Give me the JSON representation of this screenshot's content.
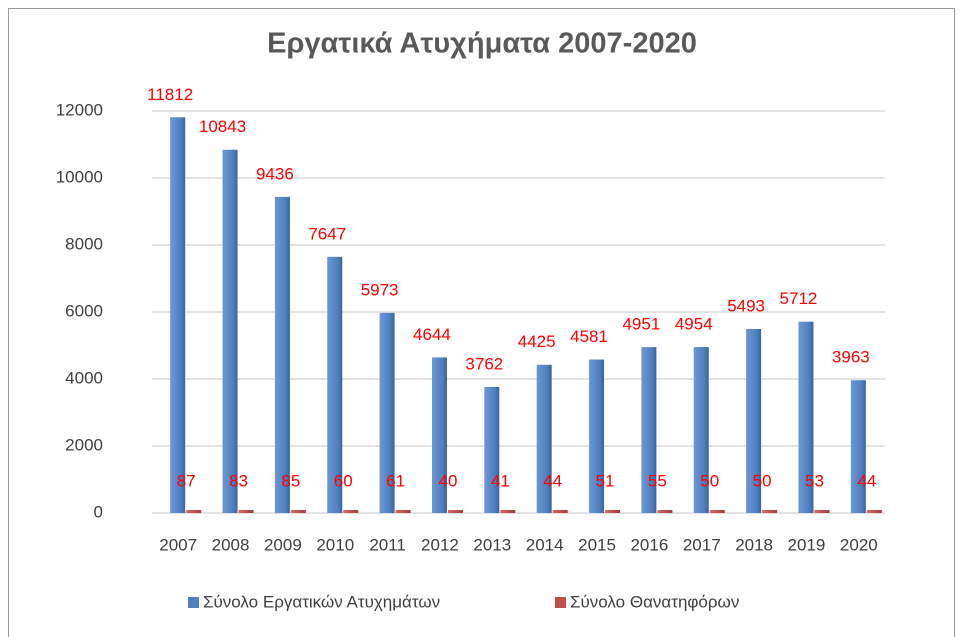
{
  "chart_data": {
    "type": "bar",
    "title": "Εργατικά Ατυχήματα 2007-2020",
    "categories": [
      "2007",
      "2008",
      "2009",
      "2010",
      "2011",
      "2012",
      "2013",
      "2014",
      "2015",
      "2016",
      "2017",
      "2018",
      "2019",
      "2020"
    ],
    "series": [
      {
        "name": "Σύνολο Εργατικών Ατυχημάτων",
        "color": "#4f7fc0",
        "values": [
          11812,
          10843,
          9436,
          7647,
          5973,
          4644,
          3762,
          4425,
          4581,
          4951,
          4954,
          5493,
          5712,
          3963
        ]
      },
      {
        "name": "Σύνολο Θανατηφόρων",
        "color": "#c0504d",
        "values": [
          87,
          83,
          85,
          60,
          61,
          40,
          41,
          44,
          51,
          55,
          50,
          50,
          53,
          44
        ]
      }
    ],
    "ylim": [
      0,
      12000
    ],
    "yticks": [
      0,
      2000,
      4000,
      6000,
      8000,
      10000,
      12000
    ],
    "grid": true,
    "legend": "bottom"
  }
}
